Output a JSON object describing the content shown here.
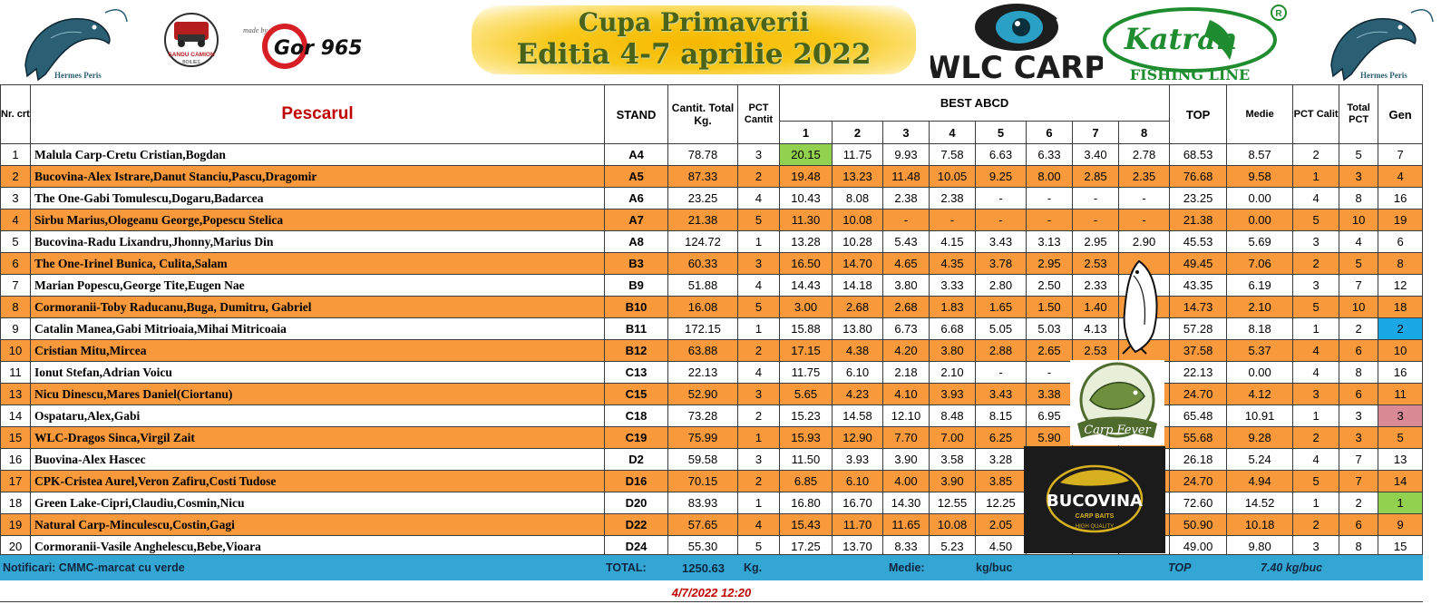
{
  "header": {
    "title_line1": "Cupa Primaverii",
    "title_line2": "Editia 4-7 aprilie 2022",
    "logo_hermes_text": "Hermes Peris",
    "logo_sandu_line1": "SANDU CAMION",
    "logo_sandu_line2": "BOILIES",
    "logo_madeby": "made by",
    "logo_gor": "Gor 965",
    "logo_wlc": "WLC CARP",
    "logo_katran": "Katran",
    "logo_katran_sub": "FISHING LINE",
    "logo_registered": "R"
  },
  "table": {
    "headers": {
      "nr": "Nr. crt.",
      "pescarul": "Pescarul",
      "stand": "STAND",
      "cantit": "Cantit. Total Kg.",
      "pct_cantit": "PCT Cantit",
      "best": "BEST ABCD",
      "best_cols": [
        "1",
        "2",
        "3",
        "4",
        "5",
        "6",
        "7",
        "8"
      ],
      "top": "TOP",
      "medie": "Medie",
      "pct_calit": "PCT Calit",
      "total_pct": "Total PCT",
      "gen": "Gen"
    },
    "rows": [
      {
        "nr": "1",
        "name": "Malula Carp-Cretu Cristian,Bogdan",
        "stand": "A4",
        "total": "78.78",
        "pct_cantit": "3",
        "best": [
          "20.15",
          "11.75",
          "9.93",
          "7.58",
          "6.63",
          "6.33",
          "3.40",
          "2.78"
        ],
        "top": "68.53",
        "medie": "8.57",
        "pct_calit": "2",
        "total_pct": "5",
        "gen": "7"
      },
      {
        "nr": "2",
        "name": "Bucovina-Alex Istrare,Danut Stanciu,Pascu,Dragomir",
        "stand": "A5",
        "total": "87.33",
        "pct_cantit": "2",
        "best": [
          "19.48",
          "13.23",
          "11.48",
          "10.05",
          "9.25",
          "8.00",
          "2.85",
          "2.35"
        ],
        "top": "76.68",
        "medie": "9.58",
        "pct_calit": "1",
        "total_pct": "3",
        "gen": "4"
      },
      {
        "nr": "3",
        "name": "The One-Gabi Tomulescu,Dogaru,Badarcea",
        "stand": "A6",
        "total": "23.25",
        "pct_cantit": "4",
        "best": [
          "10.43",
          "8.08",
          "2.38",
          "2.38",
          "-",
          "-",
          "-",
          "-"
        ],
        "top": "23.25",
        "medie": "0.00",
        "pct_calit": "4",
        "total_pct": "8",
        "gen": "16"
      },
      {
        "nr": "4",
        "name": "Sirbu Marius,Ologeanu George,Popescu Stelica",
        "stand": "A7",
        "total": "21.38",
        "pct_cantit": "5",
        "best": [
          "11.30",
          "10.08",
          "-",
          "-",
          "-",
          "-",
          "-",
          "-"
        ],
        "top": "21.38",
        "medie": "0.00",
        "pct_calit": "5",
        "total_pct": "10",
        "gen": "19"
      },
      {
        "nr": "5",
        "name": "Bucovina-Radu Lixandru,Jhonny,Marius Din",
        "stand": "A8",
        "total": "124.72",
        "pct_cantit": "1",
        "best": [
          "13.28",
          "10.28",
          "5.43",
          "4.15",
          "3.43",
          "3.13",
          "2.95",
          "2.90"
        ],
        "top": "45.53",
        "medie": "5.69",
        "pct_calit": "3",
        "total_pct": "4",
        "gen": "6"
      },
      {
        "nr": "6",
        "name": "The One-Irinel Bunica, Culita,Salam",
        "stand": "B3",
        "total": "60.33",
        "pct_cantit": "3",
        "best": [
          "16.50",
          "14.70",
          "4.65",
          "4.35",
          "3.78",
          "2.95",
          "2.53",
          ""
        ],
        "top": "49.45",
        "medie": "7.06",
        "pct_calit": "2",
        "total_pct": "5",
        "gen": "8"
      },
      {
        "nr": "7",
        "name": "Marian Popescu,George Tite,Eugen Nae",
        "stand": "B9",
        "total": "51.88",
        "pct_cantit": "4",
        "best": [
          "14.43",
          "14.18",
          "3.80",
          "3.33",
          "2.80",
          "2.50",
          "2.33",
          ""
        ],
        "top": "43.35",
        "medie": "6.19",
        "pct_calit": "3",
        "total_pct": "7",
        "gen": "12"
      },
      {
        "nr": "8",
        "name": "Cormoranii-Toby Raducanu,Buga, Dumitru, Gabriel",
        "stand": "B10",
        "total": "16.08",
        "pct_cantit": "5",
        "best": [
          "3.00",
          "2.68",
          "2.68",
          "1.83",
          "1.65",
          "1.50",
          "1.40",
          ""
        ],
        "top": "14.73",
        "medie": "2.10",
        "pct_calit": "5",
        "total_pct": "10",
        "gen": "18"
      },
      {
        "nr": "9",
        "name": "Catalin Manea,Gabi Mitrioaia,Mihai Mitricoaia",
        "stand": "B11",
        "total": "172.15",
        "pct_cantit": "1",
        "best": [
          "15.88",
          "13.80",
          "6.73",
          "6.68",
          "5.05",
          "5.03",
          "4.13",
          ""
        ],
        "top": "57.28",
        "medie": "8.18",
        "pct_calit": "1",
        "total_pct": "2",
        "gen": "2"
      },
      {
        "nr": "10",
        "name": "Cristian Mitu,Mircea",
        "stand": "B12",
        "total": "63.88",
        "pct_cantit": "2",
        "best": [
          "17.15",
          "4.38",
          "4.20",
          "3.80",
          "2.88",
          "2.65",
          "2.53",
          ""
        ],
        "top": "37.58",
        "medie": "5.37",
        "pct_calit": "4",
        "total_pct": "6",
        "gen": "10"
      },
      {
        "nr": "11",
        "name": "Ionut Stefan,Adrian Voicu",
        "stand": "C13",
        "total": "22.13",
        "pct_cantit": "4",
        "best": [
          "11.75",
          "6.10",
          "2.18",
          "2.10",
          "-",
          "-",
          "",
          ""
        ],
        "top": "22.13",
        "medie": "0.00",
        "pct_calit": "4",
        "total_pct": "8",
        "gen": "16"
      },
      {
        "nr": "13",
        "name": "Nicu Dinescu,Mares Daniel(Ciortanu)",
        "stand": "C15",
        "total": "52.90",
        "pct_cantit": "3",
        "best": [
          "5.65",
          "4.23",
          "4.10",
          "3.93",
          "3.43",
          "3.38",
          "",
          ""
        ],
        "top": "24.70",
        "medie": "4.12",
        "pct_calit": "3",
        "total_pct": "6",
        "gen": "11"
      },
      {
        "nr": "14",
        "name": "Ospataru,Alex,Gabi",
        "stand": "C18",
        "total": "73.28",
        "pct_cantit": "2",
        "best": [
          "15.23",
          "14.58",
          "12.10",
          "8.48",
          "8.15",
          "6.95",
          "",
          ""
        ],
        "top": "65.48",
        "medie": "10.91",
        "pct_calit": "1",
        "total_pct": "3",
        "gen": "3"
      },
      {
        "nr": "15",
        "name": "WLC-Dragos Sinca,Virgil Zait",
        "stand": "C19",
        "total": "75.99",
        "pct_cantit": "1",
        "best": [
          "15.93",
          "12.90",
          "7.70",
          "7.00",
          "6.25",
          "5.90",
          "",
          ""
        ],
        "top": "55.68",
        "medie": "9.28",
        "pct_calit": "2",
        "total_pct": "3",
        "gen": "5"
      },
      {
        "nr": "16",
        "name": "Buovina-Alex Hascec",
        "stand": "D2",
        "total": "59.58",
        "pct_cantit": "3",
        "best": [
          "11.50",
          "3.93",
          "3.90",
          "3.58",
          "3.28",
          "",
          "",
          ""
        ],
        "top": "26.18",
        "medie": "5.24",
        "pct_calit": "4",
        "total_pct": "7",
        "gen": "13"
      },
      {
        "nr": "17",
        "name": "CPK-Cristea Aurel,Veron Zafiru,Costi Tudose",
        "stand": "D16",
        "total": "70.15",
        "pct_cantit": "2",
        "best": [
          "6.85",
          "6.10",
          "4.00",
          "3.90",
          "3.85",
          "",
          "",
          ""
        ],
        "top": "24.70",
        "medie": "4.94",
        "pct_calit": "5",
        "total_pct": "7",
        "gen": "14"
      },
      {
        "nr": "18",
        "name": "Green Lake-Cipri,Claudiu,Cosmin,Nicu",
        "stand": "D20",
        "total": "83.93",
        "pct_cantit": "1",
        "best": [
          "16.80",
          "16.70",
          "14.30",
          "12.55",
          "12.25",
          "",
          "",
          ""
        ],
        "top": "72.60",
        "medie": "14.52",
        "pct_calit": "1",
        "total_pct": "2",
        "gen": "1"
      },
      {
        "nr": "19",
        "name": "Natural Carp-Minculescu,Costin,Gagi",
        "stand": "D22",
        "total": "57.65",
        "pct_cantit": "4",
        "best": [
          "15.43",
          "11.70",
          "11.65",
          "10.08",
          "2.05",
          "",
          "",
          ""
        ],
        "top": "50.90",
        "medie": "10.18",
        "pct_calit": "2",
        "total_pct": "6",
        "gen": "9"
      },
      {
        "nr": "20",
        "name": "Cormoranii-Vasile Anghelescu,Bebe,Vioara",
        "stand": "D24",
        "total": "55.30",
        "pct_cantit": "5",
        "best": [
          "17.25",
          "13.70",
          "8.33",
          "5.23",
          "4.50",
          "",
          "",
          ""
        ],
        "top": "49.00",
        "medie": "9.80",
        "pct_calit": "3",
        "total_pct": "8",
        "gen": "15"
      }
    ],
    "highlights": {
      "green": "#92d050",
      "blue": "#1aa7e6",
      "pink": "#d98a94",
      "orange_row": "#f8993c",
      "title_color": "#c00000"
    }
  },
  "overlays": {
    "carp_fever_text": "Carp Fever",
    "bucovina_text": "BUCOVINA",
    "bucovina_sub": "CARP BAITS",
    "bucovina_ring": "HIGH QUALITY"
  },
  "footer": {
    "notice": "Notificari: CMMC-marcat cu verde",
    "total_label": "TOTAL:",
    "total_value": "1250.63",
    "kg_label": "Kg.",
    "medie_label": "Medie:",
    "kgbuc_label": "kg/buc",
    "top_label": "TOP",
    "top_value": "7.40  kg/buc",
    "footer_color": "#33a6d4"
  },
  "timestamp": "4/7/2022 12:20"
}
